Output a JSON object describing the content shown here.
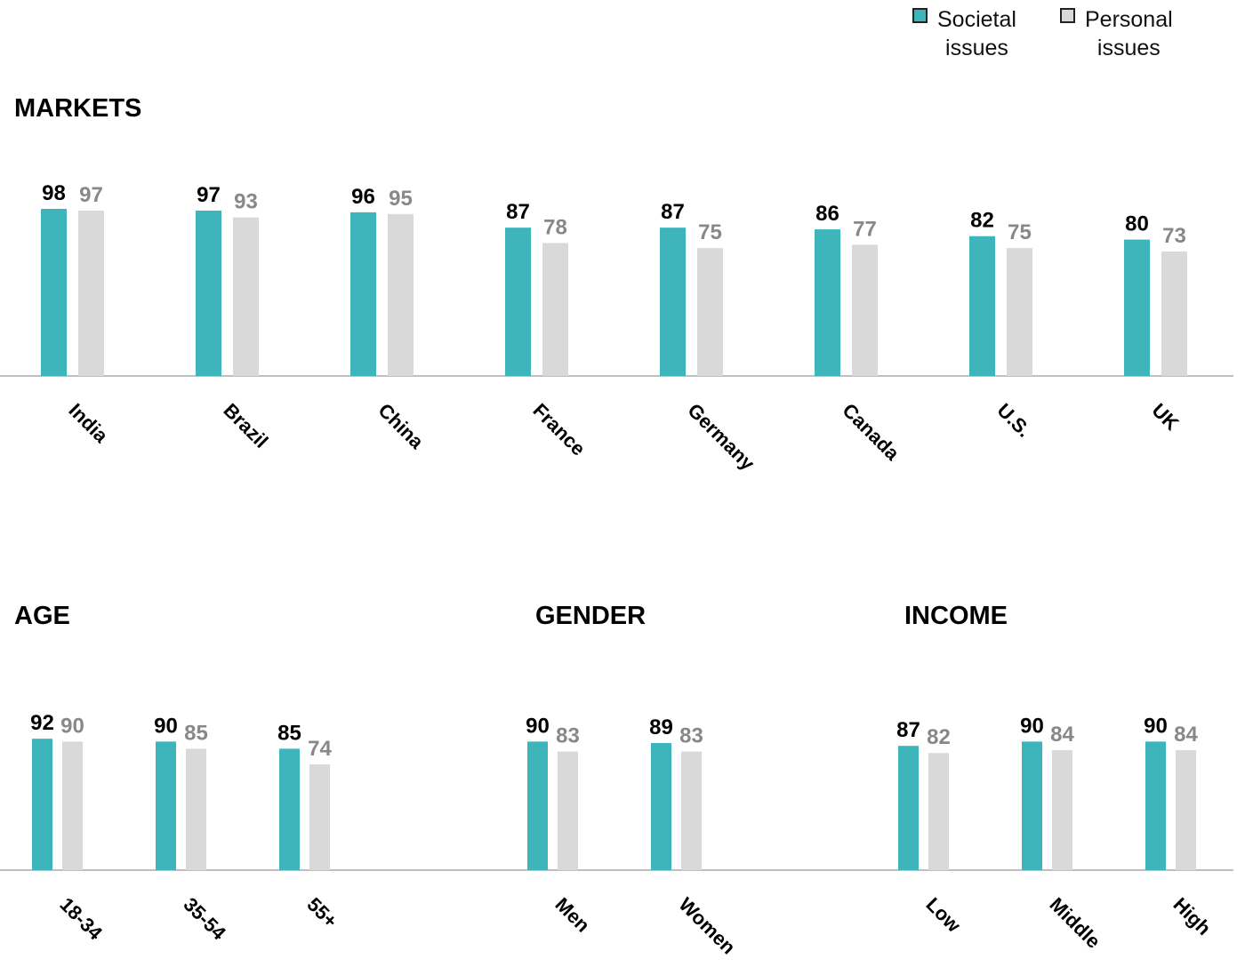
{
  "legend": [
    {
      "label": "Societal\nissues",
      "color": "#3db5bb"
    },
    {
      "label": "Personal\nissues",
      "color": "#d9d9d9"
    }
  ],
  "colors": {
    "societal": "#3db5bb",
    "personal": "#d9d9d9",
    "societal_label": "#000000",
    "personal_label": "#888888",
    "axis": "#aaaaaa"
  },
  "sections": {
    "markets": "MARKETS",
    "age": "AGE",
    "gender": "GENDER",
    "income": "INCOME"
  },
  "chart_data": [
    {
      "type": "bar",
      "title": "MARKETS",
      "categories": [
        "India",
        "Brazil",
        "China",
        "France",
        "Germany",
        "Canada",
        "U.S.",
        "UK"
      ],
      "series": [
        {
          "name": "Societal issues",
          "values": [
            98,
            97,
            96,
            87,
            87,
            86,
            82,
            80
          ]
        },
        {
          "name": "Personal issues",
          "values": [
            97,
            93,
            95,
            78,
            75,
            77,
            75,
            73
          ]
        }
      ]
    },
    {
      "type": "bar",
      "title": "AGE",
      "categories": [
        "18-34",
        "35-54",
        "55+"
      ],
      "series": [
        {
          "name": "Societal issues",
          "values": [
            92,
            90,
            85
          ]
        },
        {
          "name": "Personal issues",
          "values": [
            90,
            85,
            74
          ]
        }
      ]
    },
    {
      "type": "bar",
      "title": "GENDER",
      "categories": [
        "Men",
        "Women"
      ],
      "series": [
        {
          "name": "Societal issues",
          "values": [
            90,
            89
          ]
        },
        {
          "name": "Personal issues",
          "values": [
            83,
            83
          ]
        }
      ]
    },
    {
      "type": "bar",
      "title": "INCOME",
      "categories": [
        "Low",
        "Middle",
        "High"
      ],
      "series": [
        {
          "name": "Societal issues",
          "values": [
            87,
            90,
            90
          ]
        },
        {
          "name": "Personal issues",
          "values": [
            82,
            84,
            84
          ]
        }
      ]
    }
  ]
}
